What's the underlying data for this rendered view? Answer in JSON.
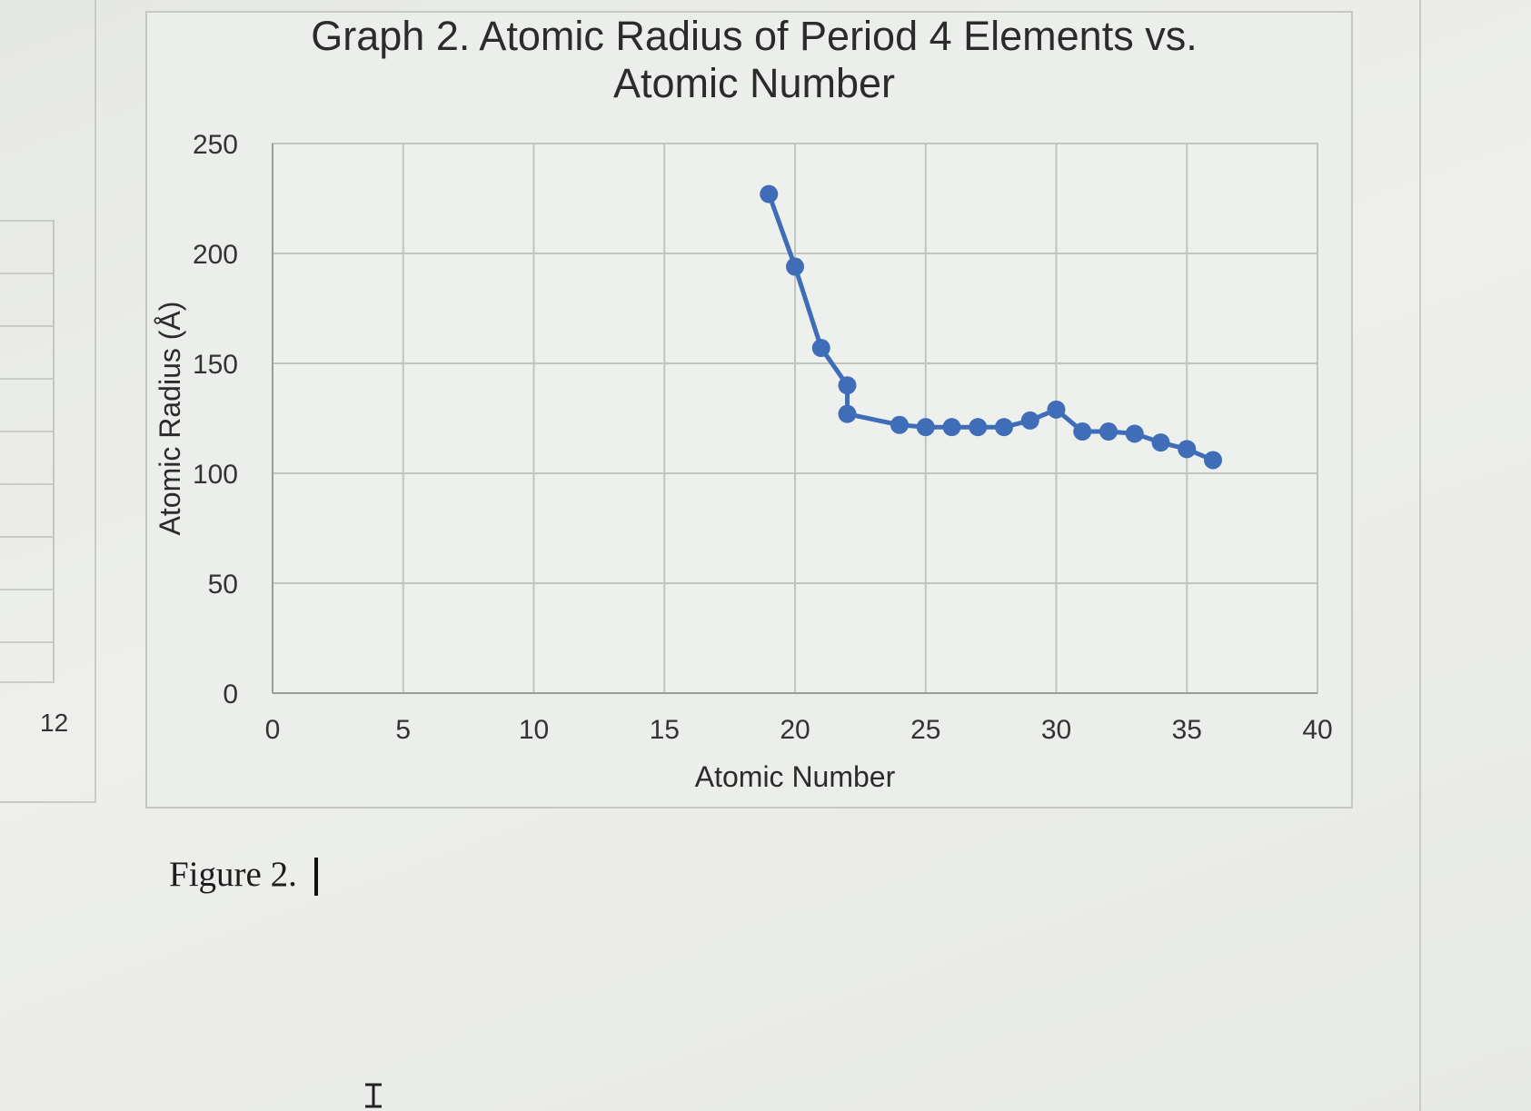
{
  "document": {
    "row_number": "12",
    "caption": "Figure 2."
  },
  "chart_data": {
    "type": "line",
    "title": "Graph 2. Atomic Radius of Period 4 Elements vs. Atomic Number",
    "title_lines": [
      "Graph 2. Atomic Radius of Period 4 Elements vs.",
      "Atomic Number"
    ],
    "xlabel": "Atomic Number",
    "ylabel": "Atomic Radius (Å)",
    "xlim": [
      0,
      40
    ],
    "ylim": [
      0,
      250
    ],
    "xticks": [
      "0",
      "5",
      "10",
      "15",
      "20",
      "25",
      "30",
      "35",
      "40"
    ],
    "yticks": [
      "0",
      "50",
      "100",
      "150",
      "200",
      "250"
    ],
    "grid": true,
    "legend": "none",
    "series": [
      {
        "color": "#3f6db8",
        "x": [
          19,
          20,
          21,
          22,
          22,
          24,
          25,
          26,
          27,
          28,
          29,
          30,
          31,
          32,
          33,
          34,
          35,
          36
        ],
        "y": [
          227,
          194,
          157,
          140,
          127,
          122,
          121,
          121,
          121,
          121,
          124,
          129,
          119,
          119,
          118,
          114,
          111,
          106
        ]
      }
    ]
  }
}
